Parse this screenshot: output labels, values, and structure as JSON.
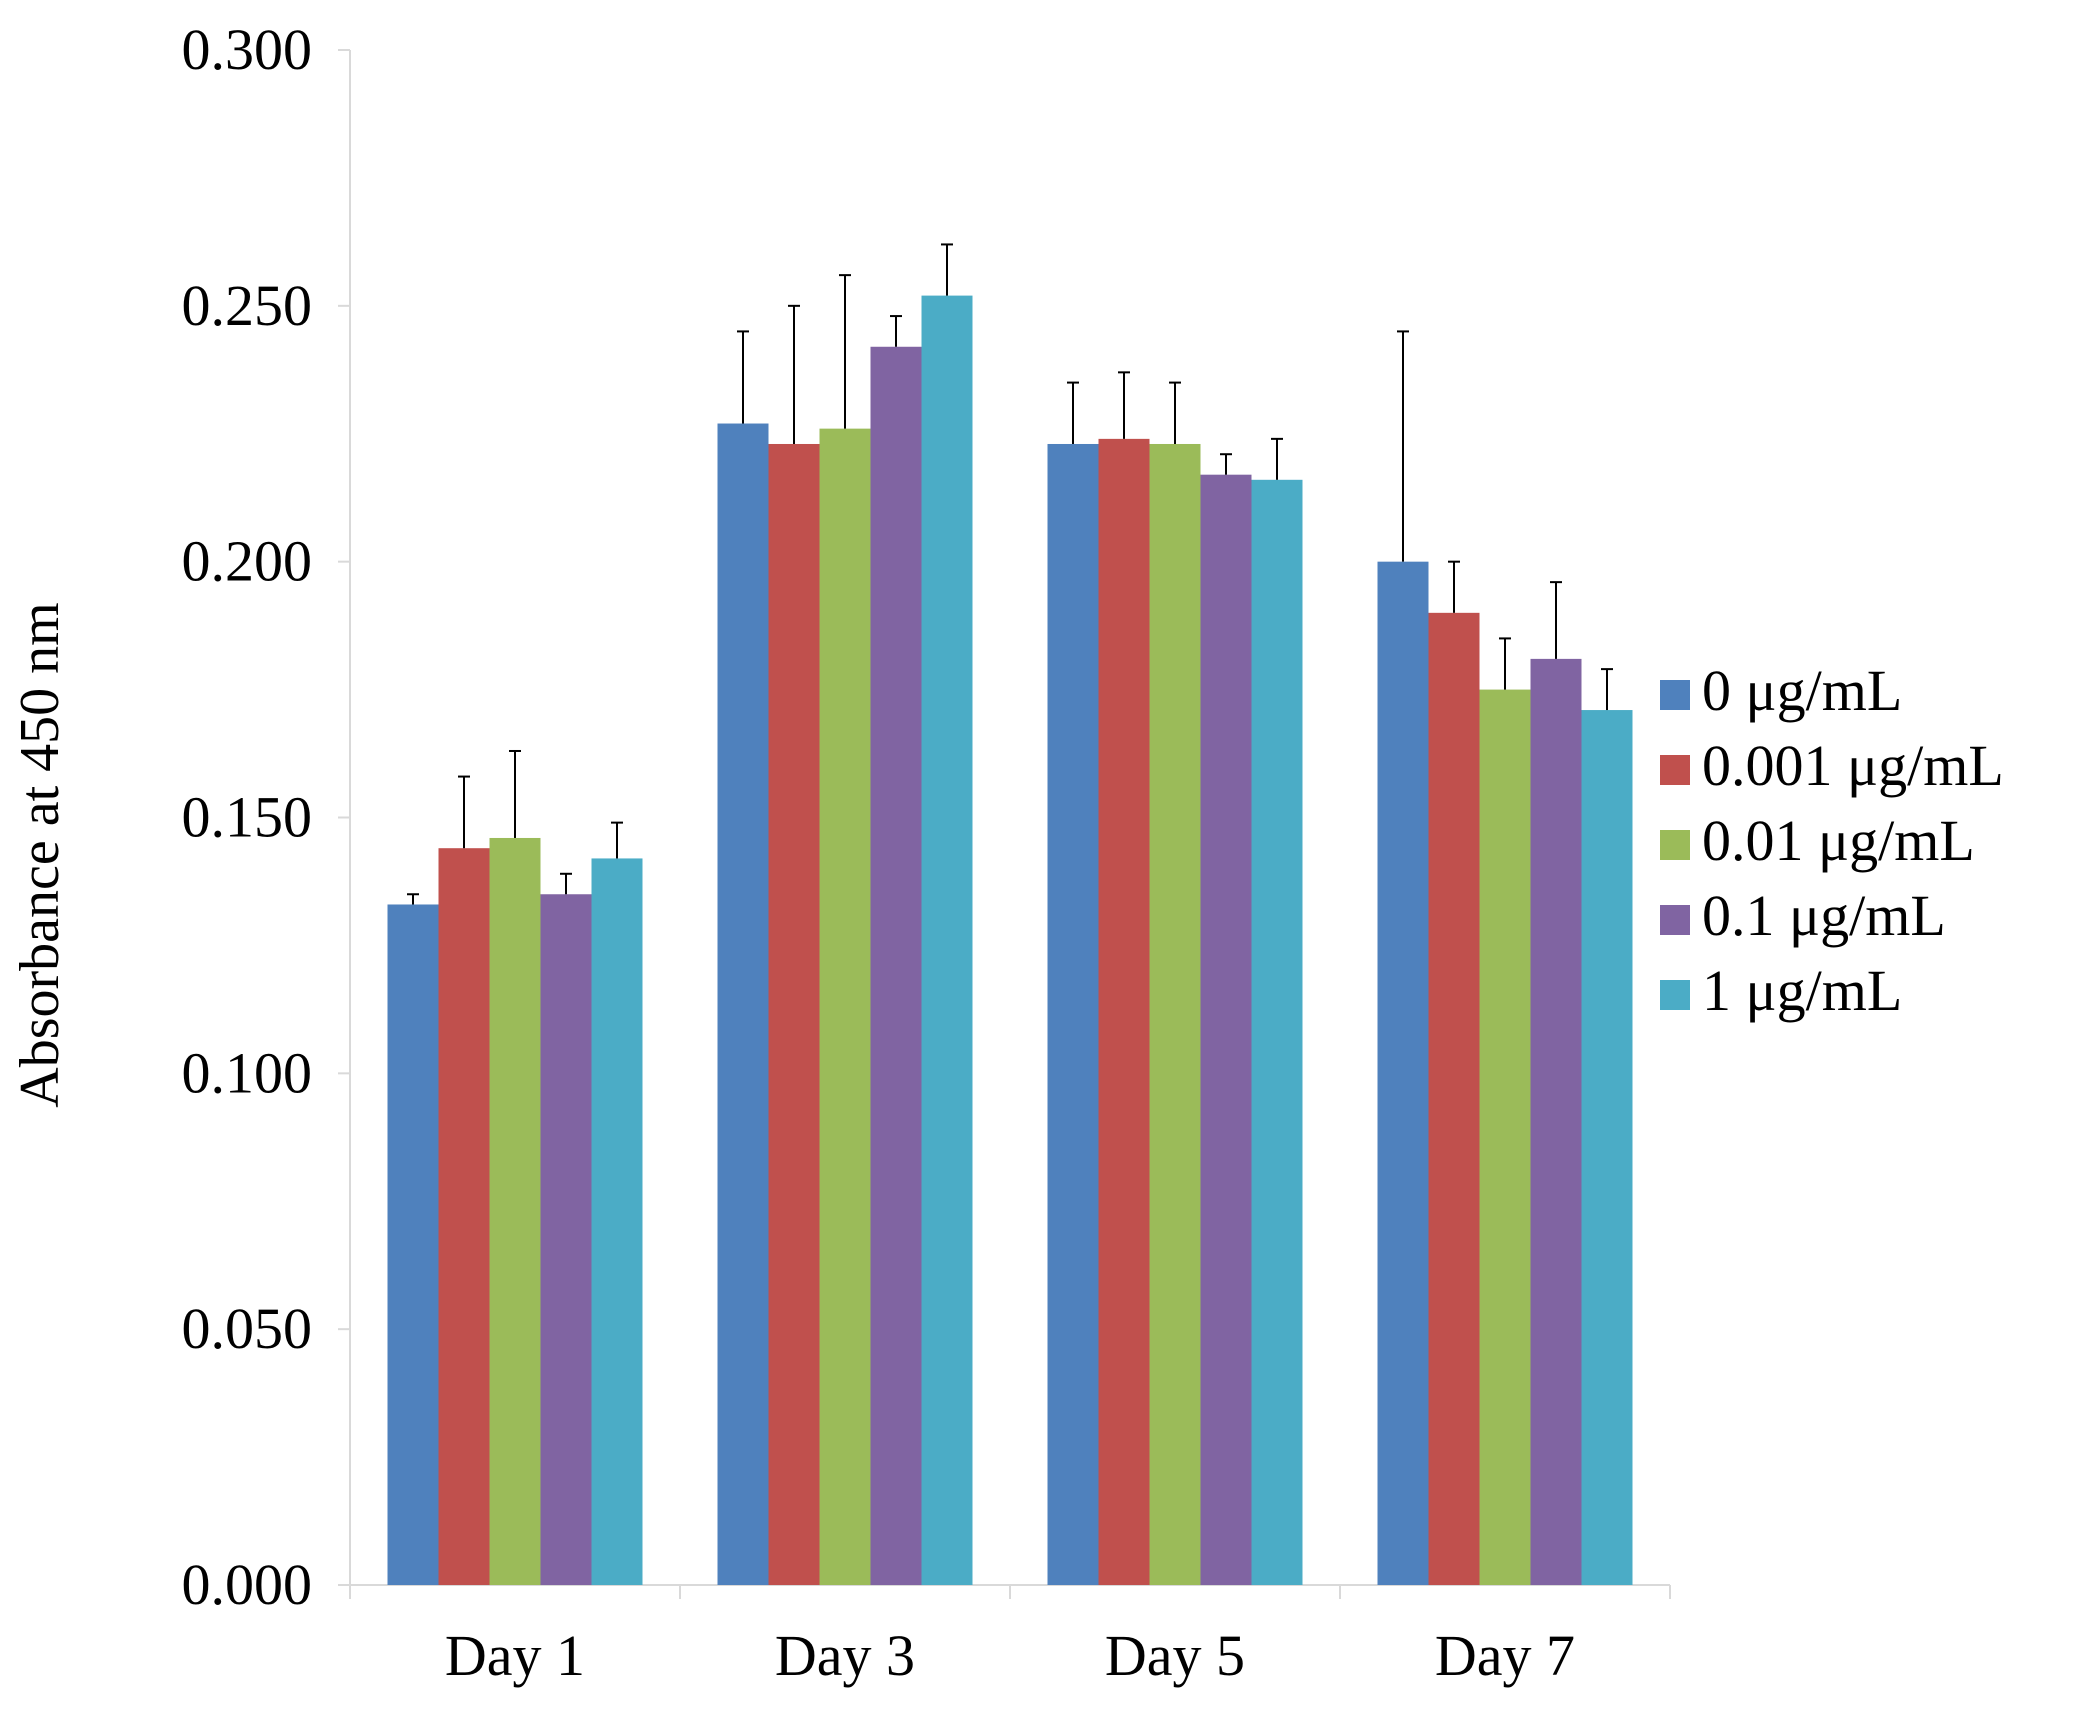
{
  "chart_data": {
    "type": "bar",
    "title": "",
    "xlabel": "",
    "ylabel": "Absorbance at 450 nm",
    "ylim": [
      0,
      0.3
    ],
    "yticks": [
      "0.000",
      "0.050",
      "0.100",
      "0.150",
      "0.200",
      "0.250",
      "0.300"
    ],
    "grid": false,
    "legend_position": "right",
    "categories": [
      "Day 1",
      "Day 3",
      "Day 5",
      "Day 7"
    ],
    "series": [
      {
        "name": "0 μg/mL",
        "color": "#4F81BD",
        "values": [
          0.133,
          0.227,
          0.223,
          0.2
        ],
        "errors": [
          0.002,
          0.018,
          0.012,
          0.045
        ]
      },
      {
        "name": "0.001 μg/mL",
        "color": "#C0504D",
        "values": [
          0.144,
          0.223,
          0.224,
          0.19
        ],
        "errors": [
          0.014,
          0.027,
          0.013,
          0.01
        ]
      },
      {
        "name": "0.01 μg/mL",
        "color": "#9BBB59",
        "values": [
          0.146,
          0.226,
          0.223,
          0.175
        ],
        "errors": [
          0.017,
          0.03,
          0.012,
          0.01
        ]
      },
      {
        "name": "0.1 μg/mL",
        "color": "#8064A2",
        "values": [
          0.135,
          0.242,
          0.217,
          0.181
        ],
        "errors": [
          0.004,
          0.006,
          0.004,
          0.015
        ]
      },
      {
        "name": "1 μg/mL",
        "color": "#4BACC6",
        "values": [
          0.142,
          0.252,
          0.216,
          0.171
        ],
        "errors": [
          0.007,
          0.01,
          0.008,
          0.008
        ]
      }
    ]
  }
}
